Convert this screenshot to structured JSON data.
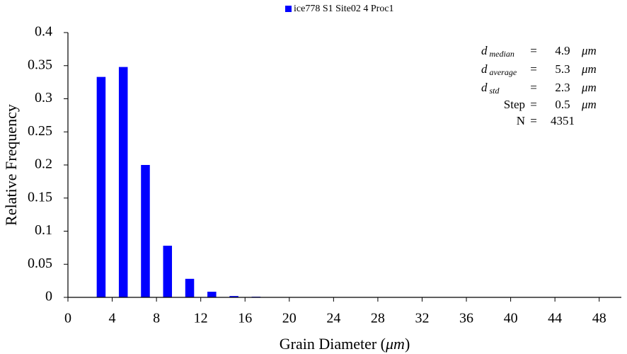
{
  "chart_data": {
    "type": "bar",
    "legend": "ice778 S1 Site02 4 Proc1",
    "color": "#0000ff",
    "xlabel": {
      "text": "Grain Diameter (",
      "unit": "μm",
      "close": ")"
    },
    "ylabel": "Relative Frequency",
    "x": [
      3,
      5,
      7,
      9,
      11,
      13,
      15,
      17,
      19,
      23,
      27
    ],
    "values": [
      0.333,
      0.348,
      0.2,
      0.078,
      0.028,
      0.0085,
      0.002,
      0.001,
      0.0005,
      0.0003,
      0.0003
    ],
    "xlim": [
      0,
      50
    ],
    "xticks": [
      0,
      4,
      8,
      12,
      16,
      20,
      24,
      28,
      32,
      36,
      40,
      44,
      48
    ],
    "ylim": [
      0,
      0.4
    ],
    "yticks": [
      0,
      0.05,
      0.1,
      0.15,
      0.2,
      0.25,
      0.3,
      0.35,
      0.4
    ],
    "stats": [
      {
        "label": "d",
        "sub": "median",
        "eq": "=",
        "value": "4.9",
        "unit": "μm"
      },
      {
        "label": "d",
        "sub": "average",
        "eq": "=",
        "value": "5.3",
        "unit": "μm"
      },
      {
        "label": "d",
        "sub": "std",
        "eq": "=",
        "value": "2.3",
        "unit": "μm"
      },
      {
        "label": "Step",
        "eq": "=",
        "value": "0.5",
        "unit": "μm"
      },
      {
        "label": "N",
        "eq": "=",
        "value": "4351"
      }
    ]
  }
}
